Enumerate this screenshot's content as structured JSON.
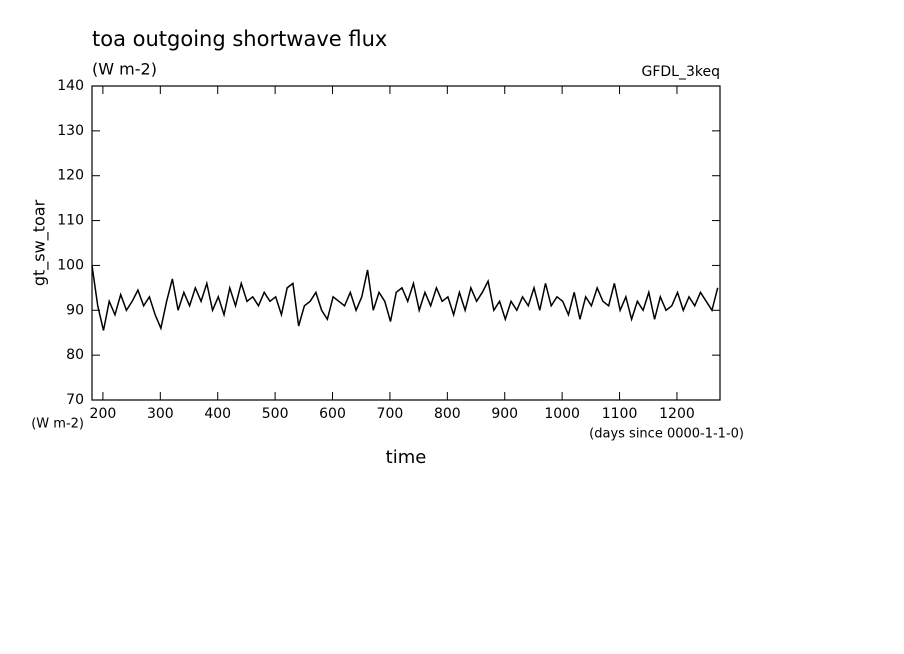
{
  "chart_data": {
    "type": "line",
    "title": "toa outgoing shortwave flux",
    "subtitle": "(W m-2)",
    "dataset_label": "GFDL_3keq",
    "ylabel": "gt_sw_toar",
    "y_unit": "(W m-2)",
    "xlabel": "time",
    "x_unit": "(days since 0000-1-1-0)",
    "xlim": [
      181,
      1275
    ],
    "ylim": [
      70,
      140
    ],
    "xticks": [
      200,
      300,
      400,
      500,
      600,
      700,
      800,
      900,
      1000,
      1100,
      1200
    ],
    "yticks": [
      70,
      80,
      90,
      100,
      110,
      120,
      130,
      140
    ],
    "x": [
      181,
      191,
      201,
      211,
      221,
      231,
      241,
      251,
      261,
      271,
      281,
      291,
      301,
      311,
      321,
      331,
      341,
      351,
      361,
      371,
      381,
      391,
      401,
      411,
      421,
      431,
      441,
      451,
      461,
      471,
      481,
      491,
      501,
      511,
      521,
      531,
      541,
      551,
      561,
      571,
      581,
      591,
      601,
      611,
      621,
      631,
      641,
      651,
      661,
      671,
      681,
      691,
      701,
      711,
      721,
      731,
      741,
      751,
      761,
      771,
      781,
      791,
      801,
      811,
      821,
      831,
      841,
      851,
      861,
      871,
      881,
      891,
      901,
      911,
      921,
      931,
      941,
      951,
      961,
      971,
      981,
      991,
      1001,
      1011,
      1021,
      1031,
      1041,
      1051,
      1061,
      1071,
      1081,
      1091,
      1101,
      1111,
      1121,
      1131,
      1141,
      1151,
      1161,
      1171,
      1181,
      1191,
      1201,
      1211,
      1221,
      1231,
      1241,
      1251,
      1261,
      1271
    ],
    "series": [
      {
        "color": "#000000",
        "values": [
          100,
          91,
          85.5,
          92,
          89,
          93.5,
          90,
          92,
          94.5,
          91,
          93,
          89,
          86,
          92,
          97,
          90,
          94,
          91,
          95,
          92,
          96,
          90,
          93,
          89,
          95,
          91,
          96,
          92,
          93,
          91,
          94,
          92,
          93,
          89,
          95,
          96,
          86.5,
          91,
          92,
          94,
          90,
          88,
          93,
          92,
          91,
          94,
          90,
          93,
          99,
          90,
          94,
          92,
          87.5,
          94,
          95,
          92,
          96,
          90,
          94,
          91,
          95,
          92,
          93,
          89,
          94,
          90,
          95,
          92,
          94,
          96.5,
          90,
          92,
          88,
          92,
          90,
          93,
          91,
          95,
          90,
          96,
          91,
          93,
          92,
          89,
          94,
          88,
          93,
          91,
          95,
          92,
          91,
          96,
          90,
          93,
          88,
          92,
          90,
          94,
          88,
          93,
          90,
          91,
          94,
          90,
          93,
          91,
          94,
          92,
          90,
          95
        ]
      }
    ]
  }
}
